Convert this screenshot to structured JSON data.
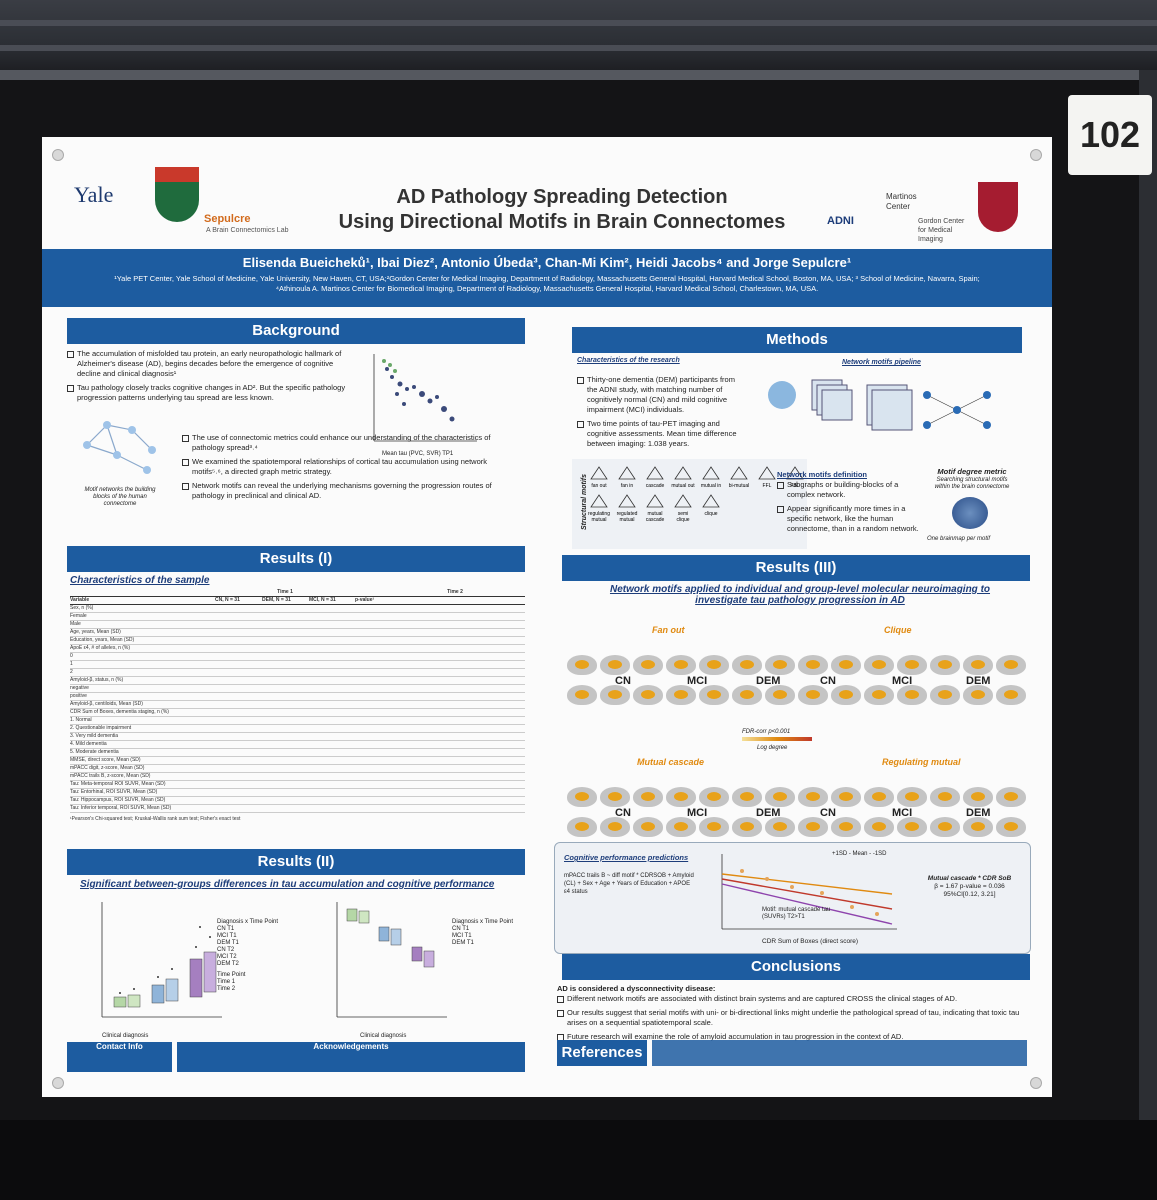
{
  "booth_number": "102",
  "poster": {
    "logo_yale": "Yale",
    "logo_lab": "Sepulcre",
    "logo_lab_sub": "A Brain Connectomics Lab",
    "title_line1": "AD Pathology Spreading Detection",
    "title_line2": "Using Directional Motifs in Brain Connectomes",
    "logo_adni": "ADNI",
    "logo_martinos": "Martinos Center",
    "logo_gordon": "Gordon Center for Medical Imaging",
    "authors": "Elisenda Bueicheků¹, Ibai Diez², Antonio Úbeda³, Chan-Mi Kim², Heidi Jacobs⁴ and Jorge Sepulcre¹",
    "affiliations": "¹Yale PET Center, Yale School of Medicine, Yale University, New Haven, CT, USA;²Gordon Center for Medical Imaging, Department of Radiology, Massachusetts General Hospital, Harvard Medical School, Boston, MA, USA; ³ School of Medicine, Navarra, Spain; ⁴Athinoula A. Martinos Center for Biomedical Imaging, Department of Radiology, Massachusetts General Hospital, Harvard Medical School, Charlestown, MA, USA.",
    "background": {
      "header": "Background",
      "p1": "The accumulation of misfolded tau protein, an early neuropathologic hallmark of Alzheimer's disease (AD), begins decades before the emergence of cognitive decline and clinical diagnosis¹",
      "p2": "Tau pathology closely tracks cognitive changes in AD². But the specific pathology progression patterns underlying tau spread are less known.",
      "p3": "The use of connectomic metrics could enhance our understanding of the characteristics of pathology spread³˒⁴",
      "p4": "We examined the spatiotemporal relationships of cortical tau accumulation using network motifs⁵˒⁶, a directed graph metric strategy.",
      "p5": "Network motifs can reveal the underlying mechanisms governing the progression routes of pathology in preclinical and clinical AD.",
      "fig_caption": "Motif networks the building blocks of the human connectome",
      "scatter_xlabel": "Mean tau (PVC, SVR) TP1",
      "scatter_ylabel": "mPACC trails B TP2"
    },
    "methods": {
      "header": "Methods",
      "sub1": "Characteristics of the research",
      "b1": "Thirty-one dementia (DEM) participants from the ADNI study, with matching number of cognitively normal (CN) and mild cognitive impairment (MCI) individuals.",
      "b2": "Two time points of tau-PET imaging and cognitive assessments. Mean time difference between imaging: 1.038 years.",
      "sub2": "Network motifs pipeline",
      "def_title": "Network motifs definition",
      "def1": "Subgraphs or building-blocks of a complex network.",
      "def2": "Appear significantly more times in a specific network, like the human connectome, than in a random network.",
      "degree": "Motif degree metric",
      "degree_sub": "Searching structural motifs within the brain connectome",
      "brainmap": "One brainmap per motif",
      "structural_motifs": "Structural motifs",
      "motif_labels": [
        "fan out",
        "fan in",
        "cascade",
        "mutual out",
        "mutual in",
        "bi-mutual",
        "FFL",
        "FBL",
        "regulating mutual",
        "regulated mutual",
        "mutual cascade",
        "semi clique",
        "clique"
      ]
    },
    "results1": {
      "header": "Results (I)",
      "sub": "Characteristics of the sample",
      "col_time1": "Time 1",
      "col_time2": "Time 2",
      "cols": [
        "Variable",
        "CN, N = 31",
        "DEM, N = 31",
        "MCI, N = 31",
        "p-value¹"
      ],
      "rows": [
        "Sex, n (%)",
        "Female",
        "Male",
        "Age, years, Mean (SD)",
        "Education, years, Mean (SD)",
        "ApoE ε4, # of alleles, n (%)",
        "0",
        "1",
        "2",
        "Amyloid-β, status, n (%)",
        "negative",
        "positive",
        "Amyloid-β, centiloids, Mean (SD)",
        "CDR Sum of Boxes, dementia staging, n (%)",
        "1. Normal",
        "2. Questionable impairment",
        "3. Very mild dementia",
        "4. Mild dementia",
        "5. Moderate dementia",
        "MMSE, direct score, Mean (SD)",
        "mPACC digit, z-score, Mean (SD)",
        "mPACC trails B, z-score, Mean (SD)",
        "Tau: Meta-temporal ROI SUVR, Mean (SD)",
        "Tau: Entorhinal, ROI SUVR, Mean (SD)",
        "Tau: Hippocampus, ROI SUVR, Mean (SD)",
        "Tau: Inferior temporal, ROI SUVR, Mean (SD)"
      ],
      "footnote": "¹Pearson's Chi-squared test; Kruskal-Wallis rank sum test; Fisher's exact test"
    },
    "results2": {
      "header": "Results (II)",
      "sub": "Significant between-groups differences in tau accumulation and cognitive performance",
      "left_ylabel": "Meta-temporal ROI tau (SUVR)",
      "right_ylabel": "mPACC trails (z-score)",
      "xlabel": "Clinical diagnosis",
      "groups": [
        "CN",
        "MCI",
        "Dementia"
      ],
      "legend_title": "Diagnosis x Time Point",
      "legend_items": [
        "CN T1",
        "MCI T1",
        "DEM T1",
        "CN T2",
        "MCI T2",
        "DEM T2"
      ],
      "time_title": "Time Point",
      "time_items": [
        "Time 1",
        "Time 2"
      ]
    },
    "results3": {
      "header": "Results (III)",
      "sub": "Network motifs applied to individual and group-level molecular neuroimaging to investigate tau pathology progression in AD",
      "m1": "Fan out",
      "m2": "Clique",
      "m3": "Mutual cascade",
      "m4": "Regulating mutual",
      "groups": [
        "CN",
        "MCI",
        "DEM"
      ],
      "colorbar": "FDR-corr p<0.001",
      "colorbar_sub": "Log degree",
      "cog_title": "Cognitive performance predictions",
      "cog_model": "mPACC trails B ~ diff motif * CDRSOB + Amyloid (CL) + Sex + Age + Years of Education + APOE ε4 status",
      "cog_xlabel": "CDR Sum of Boxes (direct score)",
      "cog_ylabel": "mPACC trails B (z-score)",
      "cog_legend": "+1SD - Mean - -1SD",
      "cog_note": "Motif: mutual cascade tau (SUVRs) T2>T1",
      "cog_stat_title": "Mutual cascade * CDR SoB",
      "cog_stats": "β = 1.67  p-value = 0.036  95%CI[0.12, 3.21]"
    },
    "conclusions": {
      "header": "Conclusions",
      "lead": "AD is considered a dysconnectivity disease:",
      "c1": "Different network motifs are associated with distinct brain systems and are captured CROSS the clinical stages of AD.",
      "c2": "Our results suggest that serial motifs with uni- or bi-directional links might underlie the pathological spread of tau, indicating that toxic tau arises on a sequential spatiotemporal scale.",
      "c3": "Future research will examine the role of amyloid accumulation in tau progression in the context of AD."
    },
    "footer": {
      "contact": "Contact Info",
      "acknowledgements": "Acknowledgements",
      "references": "References"
    }
  },
  "colors": {
    "blue": "#1d5ca0",
    "orange": "#e08a10",
    "board": "#141416"
  }
}
